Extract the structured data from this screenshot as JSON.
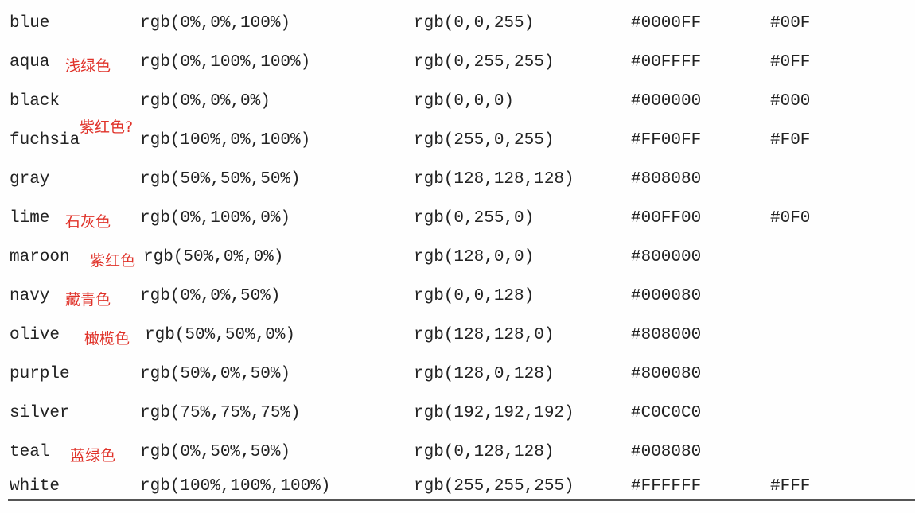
{
  "table": {
    "rows": [
      {
        "name": "blue",
        "note": "",
        "pct": "rgb(0%,0%,100%)",
        "rgb": "rgb(0,0,255)",
        "hex": "#0000FF",
        "short": "#00F"
      },
      {
        "name": "aqua",
        "note": "浅绿色",
        "pct": "rgb(0%,100%,100%)",
        "rgb": "rgb(0,255,255)",
        "hex": "#00FFFF",
        "short": "#0FF"
      },
      {
        "name": "black",
        "note": "",
        "pct": "rgb(0%,0%,0%)",
        "rgb": "rgb(0,0,0)",
        "hex": "#000000",
        "short": "#000"
      },
      {
        "name": "fuchsia",
        "note": "紫红色?",
        "pct": "rgb(100%,0%,100%)",
        "rgb": "rgb(255,0,255)",
        "hex": "#FF00FF",
        "short": "#F0F"
      },
      {
        "name": "gray",
        "note": "",
        "pct": "rgb(50%,50%,50%)",
        "rgb": "rgb(128,128,128)",
        "hex": "#808080",
        "short": ""
      },
      {
        "name": "lime",
        "note": "石灰色",
        "pct": "rgb(0%,100%,0%)",
        "rgb": "rgb(0,255,0)",
        "hex": "#00FF00",
        "short": "#0F0"
      },
      {
        "name": "maroon",
        "note": "紫红色",
        "pct": "rgb(50%,0%,0%)",
        "rgb": "rgb(128,0,0)",
        "hex": "#800000",
        "short": ""
      },
      {
        "name": "navy",
        "note": "藏青色",
        "pct": "rgb(0%,0%,50%)",
        "rgb": "rgb(0,0,128)",
        "hex": "#000080",
        "short": ""
      },
      {
        "name": "olive",
        "note": "橄榄色",
        "pct": "rgb(50%,50%,0%)",
        "rgb": "rgb(128,128,0)",
        "hex": "#808000",
        "short": ""
      },
      {
        "name": "purple",
        "note": "",
        "pct": "rgb(50%,0%,50%)",
        "rgb": "rgb(128,0,128)",
        "hex": "#800080",
        "short": ""
      },
      {
        "name": "silver",
        "note": "",
        "pct": "rgb(75%,75%,75%)",
        "rgb": "rgb(192,192,192)",
        "hex": "#C0C0C0",
        "short": ""
      },
      {
        "name": "teal",
        "note": "蓝绿色",
        "pct": "rgb(0%,50%,50%)",
        "rgb": "rgb(0,128,128)",
        "hex": "#008080",
        "short": ""
      },
      {
        "name": "white",
        "note": "",
        "pct": "rgb(100%,100%,100%)",
        "rgb": "rgb(255,255,255)",
        "hex": "#FFFFFF",
        "short": "#FFF"
      }
    ]
  },
  "colors": {
    "text": "#222222",
    "annotation": "#e0332a",
    "rule": "#555555"
  }
}
